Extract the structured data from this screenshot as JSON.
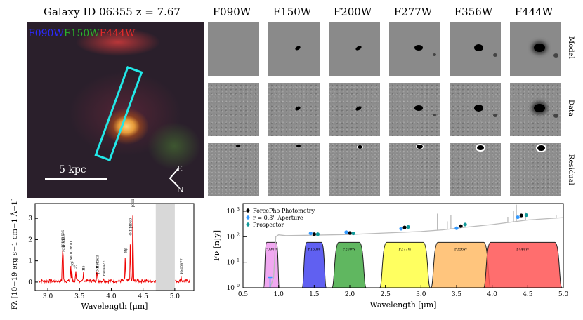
{
  "rgb_panel": {
    "title": "Galaxy ID 06355 z = 7.67",
    "filters": [
      {
        "label": "F090W",
        "color": "#2222ff"
      },
      {
        "label": "F150W",
        "color": "#22aa22"
      },
      {
        "label": "F444W",
        "color": "#dd2222"
      }
    ],
    "scalebar_label": "5 kpc",
    "compass": {
      "east": "E",
      "north": "N"
    }
  },
  "cutouts": {
    "bands": [
      "F090W",
      "F150W",
      "F200W",
      "F277W",
      "F356W",
      "F444W"
    ],
    "rows": [
      "Model",
      "Data",
      "Residual"
    ]
  },
  "chart_data": [
    {
      "type": "line",
      "xlabel": "Wavelength [μm]",
      "ylabel": "Fλ [10−19 erg s−1 cm−1 Å−1]",
      "xlim": [
        2.8,
        5.3
      ],
      "ylim": [
        -0.4,
        3.7
      ],
      "xticks": [
        "3.0",
        "3.5",
        "4.0",
        "4.5",
        "5.0"
      ],
      "yticks": [
        "0",
        "1",
        "2",
        "3"
      ],
      "shaded_region": [
        4.7,
        5.0
      ],
      "series": [
        {
          "color": "#ee0000",
          "continuum": 0.05
        }
      ],
      "lines": [
        {
          "label": "[OII]3726",
          "x": 3.23,
          "y": 1.5
        },
        {
          "label": "[OII]3729",
          "x": 3.24,
          "y": 1.3
        },
        {
          "label": "[NeIII]3870",
          "x": 3.36,
          "y": 0.8
        },
        {
          "label": "H8",
          "x": 3.38,
          "y": 0.55
        },
        {
          "label": "H7",
          "x": 3.44,
          "y": 0.45
        },
        {
          "label": "Hδ",
          "x": 3.56,
          "y": 0.4
        },
        {
          "label": "Hγ",
          "x": 3.77,
          "y": 0.5
        },
        {
          "label": "[OIII]4363",
          "x": 3.78,
          "y": 0.25
        },
        {
          "label": "HeI4472",
          "x": 3.88,
          "y": 0.15
        },
        {
          "label": "Hβ",
          "x": 4.22,
          "y": 1.25
        },
        {
          "label": "[OIII]4960",
          "x": 4.3,
          "y": 2.0
        },
        {
          "label": "[OIII]5007",
          "x": 4.34,
          "y": 3.4
        },
        {
          "label": "HeI5877",
          "x": 5.1,
          "y": 0.25
        }
      ]
    },
    {
      "type": "scatter",
      "xlabel": "Wavelength [μm]",
      "ylabel": "Fν [nJy]",
      "xlim": [
        0.5,
        5.0
      ],
      "ylim": [
        1,
        2000
      ],
      "yscale": "log",
      "xticks": [
        "0.5",
        "1.0",
        "1.5",
        "2.0",
        "2.5",
        "3.0",
        "3.5",
        "4.0",
        "4.5",
        "5.0"
      ],
      "yticks": [
        "10^0",
        "10^1",
        "10^2",
        "10^3"
      ],
      "legend": "top-left",
      "series": [
        {
          "name": "ForcePho Photometry",
          "color": "#000000",
          "x": [
            1.5,
            2.0,
            2.77,
            3.56,
            4.41
          ],
          "y": [
            125,
            140,
            230,
            260,
            680
          ]
        },
        {
          "name": "r = 0.3'' Aperture",
          "color": "#3399ff",
          "x": [
            1.45,
            1.95,
            2.72,
            3.5,
            4.36
          ],
          "y": [
            135,
            150,
            205,
            215,
            580
          ]
        },
        {
          "name": "Prospector",
          "color": "#119999",
          "x": [
            1.55,
            2.05,
            2.82,
            3.62,
            4.48
          ],
          "y": [
            125,
            135,
            240,
            300,
            700
          ]
        }
      ],
      "model_continuum": {
        "color": "#bbbbbb",
        "x": [
          0.5,
          0.88,
          0.93,
          0.96,
          1.0,
          1.1,
          1.5,
          2.0,
          2.5,
          3.0,
          3.3,
          3.6,
          4.0,
          4.5,
          5.0
        ],
        "y": [
          1.0,
          1.0,
          2.5,
          100,
          118,
          110,
          115,
          122,
          140,
          160,
          185,
          230,
          300,
          450,
          560
        ]
      },
      "model_lines": [
        {
          "x": 3.23,
          "y": 800
        },
        {
          "x": 3.37,
          "y": 400
        },
        {
          "x": 3.42,
          "y": 700
        },
        {
          "x": 4.22,
          "y": 600
        },
        {
          "x": 4.3,
          "y": 1000
        },
        {
          "x": 4.34,
          "y": 1800
        },
        {
          "x": 4.47,
          "y": 900
        },
        {
          "x": 4.9,
          "y": 700
        }
      ],
      "filter_curves": [
        {
          "label": "F090W",
          "x0": 0.79,
          "x1": 1.01,
          "color": "#ee99ee"
        },
        {
          "label": "F150W",
          "x0": 1.33,
          "x1": 1.67,
          "color": "#4444ee"
        },
        {
          "label": "F200W",
          "x0": 1.75,
          "x1": 2.23,
          "color": "#44aa44"
        },
        {
          "label": "F277W",
          "x0": 2.42,
          "x1": 3.13,
          "color": "#ffff44"
        },
        {
          "label": "F356W",
          "x0": 3.14,
          "x1": 3.98,
          "color": "#ffbb66"
        },
        {
          "label": "F444W",
          "x0": 3.88,
          "x1": 4.98,
          "color": "#ff5555"
        }
      ],
      "upper_limit": {
        "x": 0.88,
        "y": 2.5
      }
    }
  ]
}
